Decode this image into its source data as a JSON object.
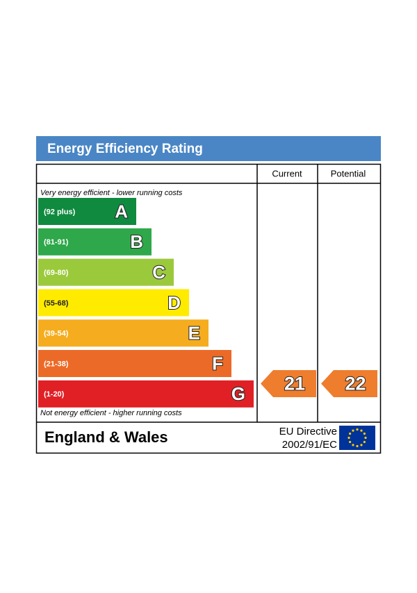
{
  "title": "Energy Efficiency Rating",
  "columns": [
    "Current",
    "Potential"
  ],
  "top_note": "Very energy efficient - lower running costs",
  "bottom_note": "Not energy efficient - higher running costs",
  "bands": [
    {
      "range": "(92 plus)",
      "letter": "A",
      "color": "#0f8a3f"
    },
    {
      "range": "(81-91)",
      "letter": "B",
      "color": "#2ea84a"
    },
    {
      "range": "(69-80)",
      "letter": "C",
      "color": "#9bc93c"
    },
    {
      "range": "(55-68)",
      "letter": "D",
      "color": "#ffeb00"
    },
    {
      "range": "(39-54)",
      "letter": "E",
      "color": "#f5ad1f"
    },
    {
      "range": "(21-38)",
      "letter": "F",
      "color": "#ec6a27"
    },
    {
      "range": "(1-20)",
      "letter": "G",
      "color": "#e02025"
    }
  ],
  "current": {
    "value": 21,
    "color": "#ef7d2e"
  },
  "potential": {
    "value": 22,
    "color": "#ef7d2e"
  },
  "region": "England & Wales",
  "directive": [
    "EU Directive",
    "2002/91/EC"
  ]
}
